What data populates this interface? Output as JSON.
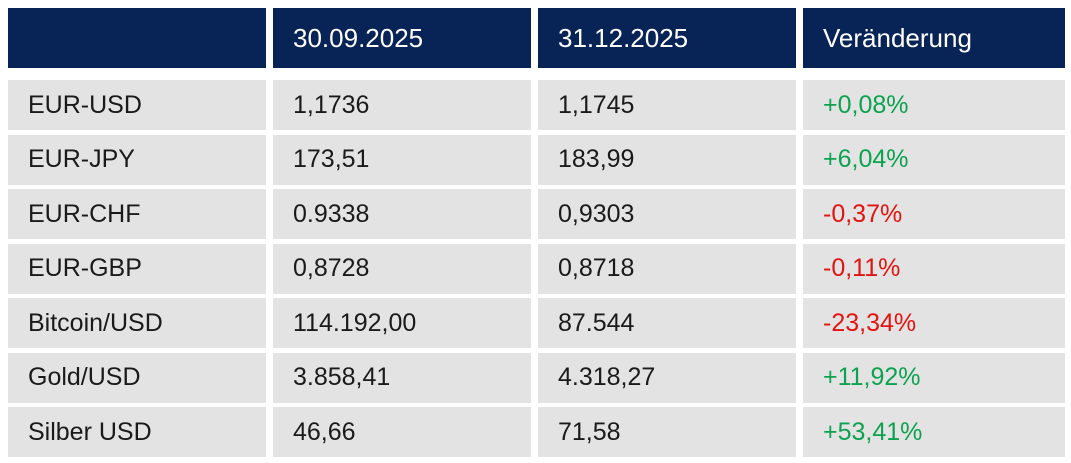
{
  "table": {
    "header": {
      "col_label": "",
      "col_date1": "30.09.2025",
      "col_date2": "31.12.2025",
      "col_change": "Veränderung"
    },
    "rows": [
      {
        "label": "EUR-USD",
        "value_30_09": "1,1736",
        "value_31_12": "1,1745",
        "change": "+0,08%",
        "trend": "positive"
      },
      {
        "label": "EUR-JPY",
        "value_30_09": "173,51",
        "value_31_12": "183,99",
        "change": "+6,04%",
        "trend": "positive"
      },
      {
        "label": "EUR-CHF",
        "value_30_09": "0.9338",
        "value_31_12": "0,9303",
        "change": "-0,37%",
        "trend": "negative"
      },
      {
        "label": "EUR-GBP",
        "value_30_09": "0,8728",
        "value_31_12": "0,8718",
        "change": "-0,11%",
        "trend": "negative"
      },
      {
        "label": "Bitcoin/USD",
        "value_30_09": "114.192,00",
        "value_31_12": "87.544",
        "change": "-23,34%",
        "trend": "negative"
      },
      {
        "label": "Gold/USD",
        "value_30_09": "3.858,41",
        "value_31_12": "4.318,27",
        "change": "+11,92%",
        "trend": "positive"
      },
      {
        "label": "Silber USD",
        "value_30_09": "46,66",
        "value_31_12": "71,58",
        "change": "+53,41%",
        "trend": "positive"
      }
    ],
    "colors": {
      "header_bg": "#082355",
      "header_text": "#ffffff",
      "row_bg": "#e3e3e3",
      "text": "#1a1a1a",
      "positive": "#0ca24f",
      "negative": "#e11411"
    }
  },
  "chart_data": {
    "type": "table",
    "title": "",
    "columns": [
      "",
      "30.09.2025",
      "31.12.2025",
      "Veränderung"
    ],
    "rows": [
      [
        "EUR-USD",
        "1,1736",
        "1,1745",
        "+0,08%"
      ],
      [
        "EUR-JPY",
        "173,51",
        "183,99",
        "+6,04%"
      ],
      [
        "EUR-CHF",
        "0.9338",
        "0,9303",
        "-0,37%"
      ],
      [
        "EUR-GBP",
        "0,8728",
        "0,8718",
        "-0,11%"
      ],
      [
        "Bitcoin/USD",
        "114.192,00",
        "87.544",
        "-23,34%"
      ],
      [
        "Gold/USD",
        "3.858,41",
        "4.318,27",
        "+11,92%"
      ],
      [
        "Silber USD",
        "46,66",
        "71,58",
        "+53,41%"
      ]
    ]
  }
}
